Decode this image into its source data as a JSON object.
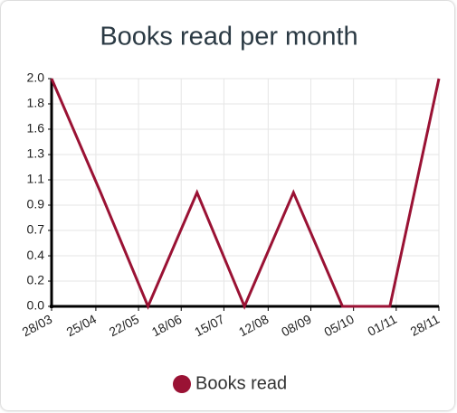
{
  "chart_data": {
    "type": "line",
    "title": "Books read per month",
    "x": [
      "28/03",
      "28/04",
      "28/05",
      "28/06",
      "28/07",
      "28/08",
      "28/09",
      "28/10",
      "28/11"
    ],
    "series": [
      {
        "name": "Books read",
        "color": "#9a1234",
        "values": [
          2,
          1,
          0,
          1,
          0,
          1,
          0,
          0,
          2
        ]
      }
    ],
    "xlim": [
      "28/03",
      "28/11"
    ],
    "xticks": [
      "28/03",
      "25/04",
      "22/05",
      "18/06",
      "15/07",
      "12/08",
      "08/09",
      "05/10",
      "01/11",
      "28/11"
    ],
    "ylim": [
      0,
      2
    ],
    "yticks": [
      {
        "value": 0,
        "label": "0.0"
      },
      {
        "value": 0.222,
        "label": "0.2"
      },
      {
        "value": 0.444,
        "label": "0.4"
      },
      {
        "value": 0.667,
        "label": "0.7"
      },
      {
        "value": 0.889,
        "label": "0.9"
      },
      {
        "value": 1.111,
        "label": "1.1"
      },
      {
        "value": 1.333,
        "label": "1.3"
      },
      {
        "value": 1.556,
        "label": "1.6"
      },
      {
        "value": 1.778,
        "label": "1.8"
      },
      {
        "value": 2,
        "label": "2.0"
      }
    ],
    "grid": true,
    "legend": "bottom"
  }
}
